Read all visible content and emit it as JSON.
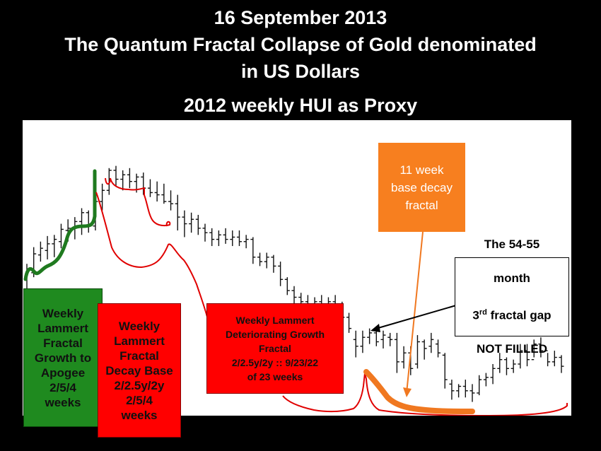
{
  "title": {
    "line1": "16 September 2013",
    "line2": "The Quantum Fractal Collapse of Gold denominated",
    "line3": "in US Dollars",
    "line4": "2012 weekly HUI as Proxy"
  },
  "annotations": {
    "green_box": "Weekly\nLammert\nFractal\nGrowth to\nApogee\n2/5/4\nweeks",
    "red_box_decay": "Weekly\nLammert\nFractal\nDecay Base\n2/2.5y/2y\n2/5/4\nweeks",
    "red_box_deteriorating": "Weekly Lammert\nDeteriorating Growth\nFractal\n2/2.5y/2y :: 9/23/22\nof 23 weeks",
    "orange_box": "11 week\nbase decay\nfractal",
    "gap_box": {
      "line1": "The 54-55",
      "line2": "month",
      "line3_prefix": "3",
      "line3_sup": "rd",
      "line3_suffix": " fractal gap",
      "line4": "NOT FILLED"
    }
  },
  "colors": {
    "background": "#000000",
    "panel": "#ffffff",
    "bars": "#111111",
    "green": "#1f7a1f",
    "red": "#e00000",
    "orange": "#f07820",
    "green_box": "#1f8a1f",
    "red_box": "#ff0000",
    "orange_box": "#f77f1f"
  },
  "chart_data": {
    "type": "ohlc",
    "title": "2012 weekly HUI as Proxy",
    "period": "weekly",
    "bars": [
      {
        "h": 330,
        "l": 300,
        "o": 318,
        "c": 324
      },
      {
        "h": 345,
        "l": 318,
        "o": 322,
        "c": 339
      },
      {
        "h": 350,
        "l": 332,
        "o": 338,
        "c": 344
      },
      {
        "h": 355,
        "l": 334,
        "o": 342,
        "c": 348
      },
      {
        "h": 356,
        "l": 336,
        "o": 348,
        "c": 352
      },
      {
        "h": 366,
        "l": 344,
        "o": 350,
        "c": 361
      },
      {
        "h": 370,
        "l": 350,
        "o": 360,
        "c": 362
      },
      {
        "h": 372,
        "l": 352,
        "o": 362,
        "c": 368
      },
      {
        "h": 380,
        "l": 356,
        "o": 368,
        "c": 376
      },
      {
        "h": 378,
        "l": 358,
        "o": 376,
        "c": 364
      },
      {
        "h": 390,
        "l": 360,
        "o": 364,
        "c": 386
      },
      {
        "h": 402,
        "l": 378,
        "o": 386,
        "c": 396
      },
      {
        "h": 416,
        "l": 392,
        "o": 396,
        "c": 414
      },
      {
        "h": 418,
        "l": 400,
        "o": 414,
        "c": 406
      },
      {
        "h": 414,
        "l": 396,
        "o": 406,
        "c": 410
      },
      {
        "h": 416,
        "l": 398,
        "o": 410,
        "c": 404
      },
      {
        "h": 411,
        "l": 394,
        "o": 404,
        "c": 408
      },
      {
        "h": 412,
        "l": 392,
        "o": 408,
        "c": 398
      },
      {
        "h": 406,
        "l": 390,
        "o": 398,
        "c": 394
      },
      {
        "h": 404,
        "l": 386,
        "o": 394,
        "c": 392
      },
      {
        "h": 402,
        "l": 384,
        "o": 392,
        "c": 386
      },
      {
        "h": 396,
        "l": 378,
        "o": 386,
        "c": 384
      },
      {
        "h": 392,
        "l": 360,
        "o": 384,
        "c": 372
      },
      {
        "h": 378,
        "l": 354,
        "o": 372,
        "c": 366
      },
      {
        "h": 376,
        "l": 358,
        "o": 366,
        "c": 370
      },
      {
        "h": 374,
        "l": 356,
        "o": 370,
        "c": 362
      },
      {
        "h": 366,
        "l": 350,
        "o": 362,
        "c": 358
      },
      {
        "h": 362,
        "l": 346,
        "o": 358,
        "c": 352
      },
      {
        "h": 360,
        "l": 346,
        "o": 352,
        "c": 356
      },
      {
        "h": 362,
        "l": 348,
        "o": 356,
        "c": 352
      },
      {
        "h": 360,
        "l": 346,
        "o": 352,
        "c": 354
      },
      {
        "h": 360,
        "l": 346,
        "o": 354,
        "c": 350
      },
      {
        "h": 356,
        "l": 344,
        "o": 350,
        "c": 352
      },
      {
        "h": 354,
        "l": 330,
        "o": 352,
        "c": 336
      },
      {
        "h": 340,
        "l": 328,
        "o": 336,
        "c": 332
      },
      {
        "h": 340,
        "l": 326,
        "o": 332,
        "c": 336
      },
      {
        "h": 338,
        "l": 322,
        "o": 336,
        "c": 328
      },
      {
        "h": 332,
        "l": 310,
        "o": 328,
        "c": 316
      },
      {
        "h": 318,
        "l": 302,
        "o": 316,
        "c": 306
      },
      {
        "h": 310,
        "l": 294,
        "o": 306,
        "c": 300
      },
      {
        "h": 304,
        "l": 290,
        "o": 300,
        "c": 296
      },
      {
        "h": 302,
        "l": 288,
        "o": 296,
        "c": 294
      },
      {
        "h": 300,
        "l": 290,
        "o": 294,
        "c": 296
      },
      {
        "h": 302,
        "l": 290,
        "o": 296,
        "c": 292
      },
      {
        "h": 300,
        "l": 288,
        "o": 292,
        "c": 296
      },
      {
        "h": 302,
        "l": 290,
        "o": 296,
        "c": 294
      },
      {
        "h": 296,
        "l": 276,
        "o": 294,
        "c": 282
      },
      {
        "h": 286,
        "l": 268,
        "o": 282,
        "c": 272
      },
      {
        "h": 270,
        "l": 246,
        "o": 262,
        "c": 256
      },
      {
        "h": 270,
        "l": 250,
        "o": 256,
        "c": 264
      },
      {
        "h": 272,
        "l": 258,
        "o": 264,
        "c": 268
      },
      {
        "h": 272,
        "l": 256,
        "o": 268,
        "c": 260
      },
      {
        "h": 270,
        "l": 254,
        "o": 262,
        "c": 266
      },
      {
        "h": 268,
        "l": 256,
        "o": 264,
        "c": 262
      },
      {
        "h": 268,
        "l": 232,
        "o": 262,
        "c": 242
      },
      {
        "h": 256,
        "l": 236,
        "o": 242,
        "c": 250
      },
      {
        "h": 256,
        "l": 230,
        "o": 250,
        "c": 236
      },
      {
        "h": 266,
        "l": 236,
        "o": 240,
        "c": 260
      },
      {
        "h": 262,
        "l": 244,
        "o": 260,
        "c": 254
      },
      {
        "h": 268,
        "l": 250,
        "o": 256,
        "c": 262
      },
      {
        "h": 262,
        "l": 246,
        "o": 258,
        "c": 250
      },
      {
        "h": 250,
        "l": 218,
        "o": 248,
        "c": 226
      },
      {
        "h": 226,
        "l": 208,
        "o": 222,
        "c": 216
      },
      {
        "h": 222,
        "l": 210,
        "o": 216,
        "c": 220
      },
      {
        "h": 226,
        "l": 210,
        "o": 220,
        "c": 216
      },
      {
        "h": 222,
        "l": 206,
        "o": 216,
        "c": 214
      },
      {
        "h": 230,
        "l": 212,
        "o": 214,
        "c": 226
      },
      {
        "h": 232,
        "l": 220,
        "o": 226,
        "c": 228
      },
      {
        "h": 240,
        "l": 222,
        "o": 228,
        "c": 236
      },
      {
        "h": 250,
        "l": 232,
        "o": 236,
        "c": 244
      },
      {
        "h": 246,
        "l": 230,
        "o": 244,
        "c": 236
      },
      {
        "h": 244,
        "l": 232,
        "o": 236,
        "c": 240
      },
      {
        "h": 258,
        "l": 236,
        "o": 240,
        "c": 252
      },
      {
        "h": 258,
        "l": 238,
        "o": 252,
        "c": 244
      },
      {
        "h": 262,
        "l": 246,
        "o": 244,
        "c": 258
      },
      {
        "h": 264,
        "l": 246,
        "o": 258,
        "c": 252
      },
      {
        "h": 250,
        "l": 238,
        "o": 252,
        "c": 242
      },
      {
        "h": 252,
        "l": 238,
        "o": 242,
        "c": 246
      },
      {
        "h": 248,
        "l": 232,
        "o": 246,
        "c": 238
      }
    ],
    "yrange": [
      200,
      440
    ]
  }
}
